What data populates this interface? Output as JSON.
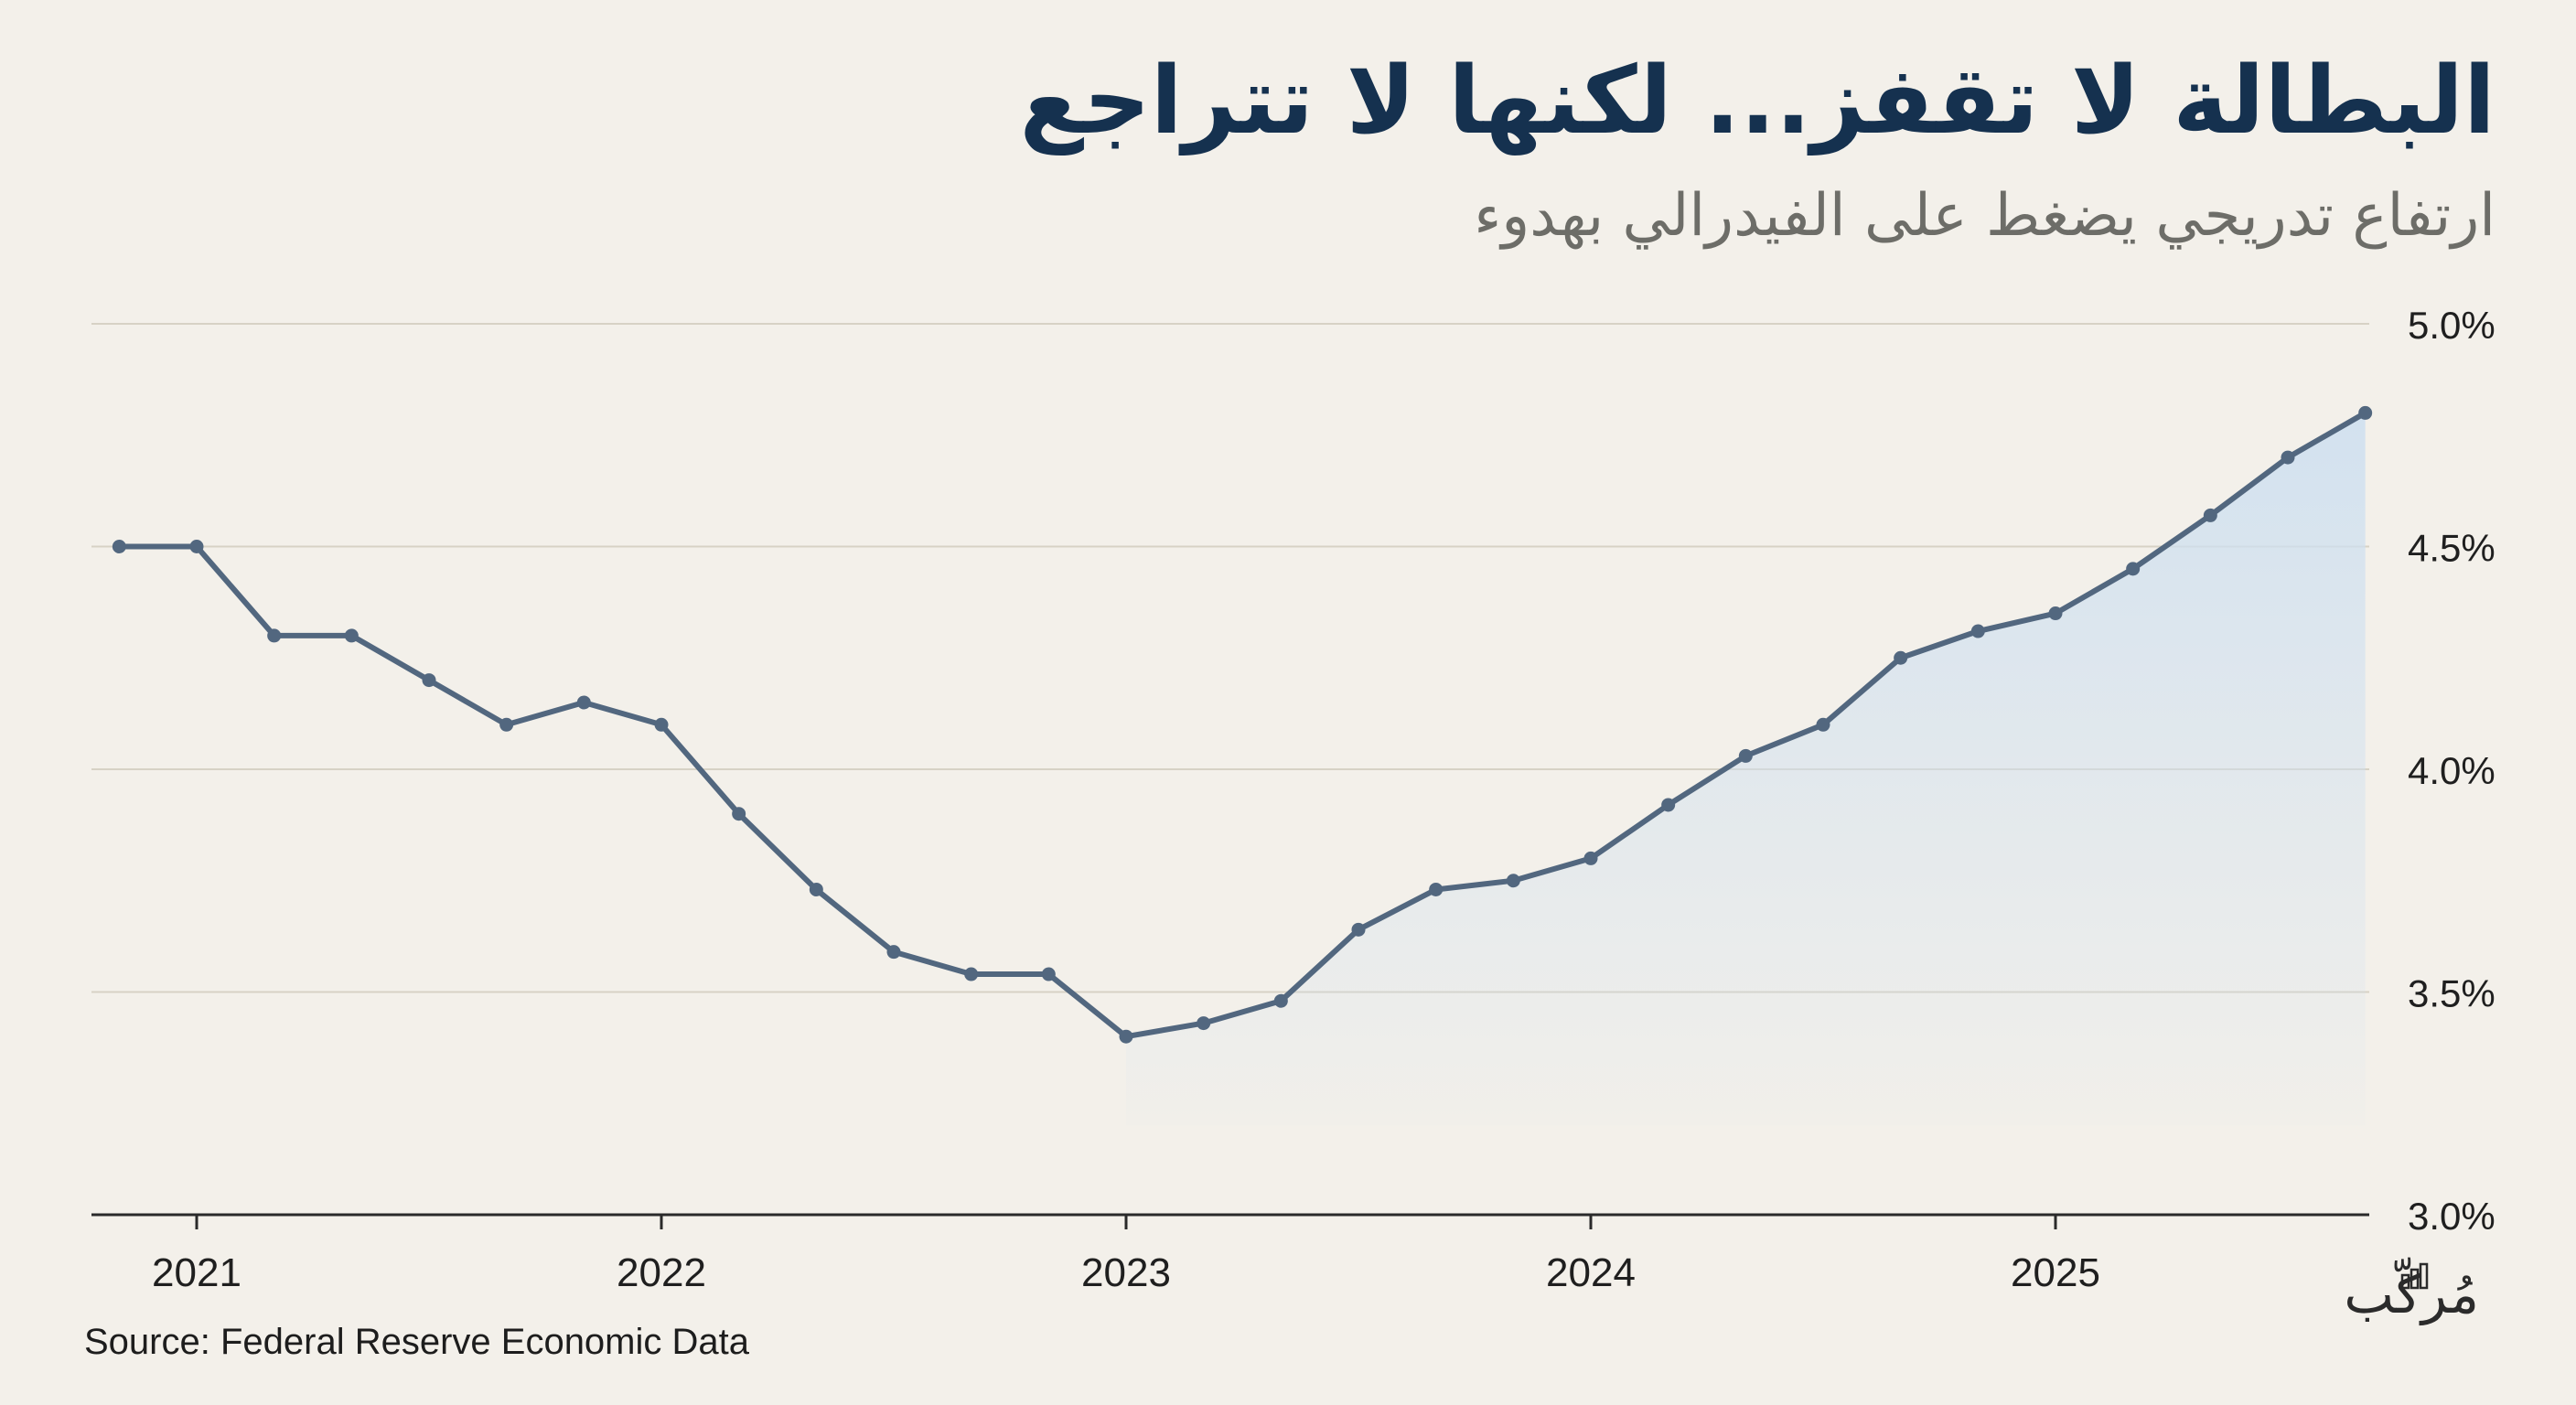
{
  "header": {
    "title": "البطالة لا تقفز... لكنها لا تتراجع",
    "subtitle": "ارتفاع تدريجي يضغط على الفيدرالي بهدوء"
  },
  "footer": {
    "source": "Source: Federal Reserve Economic Data",
    "logo_text": "مُركّب",
    "logo_icon": "bar-chart-icon"
  },
  "colors": {
    "background": "#f3f0ea",
    "line": "#52677f",
    "area_fill": "#cfe0f0",
    "grid": "#d7d2c5",
    "title": "#15314f",
    "subtitle": "#6d6d68"
  },
  "chart_data": {
    "type": "line",
    "title": "",
    "xlabel": "",
    "ylabel": "",
    "x_tick_labels": [
      "2021",
      "2022",
      "2023",
      "2024",
      "2025"
    ],
    "y_tick_labels": [
      "5.0%",
      "4.5%",
      "4.0%",
      "3.5%",
      "3.0%"
    ],
    "ylim": [
      3.0,
      5.0
    ],
    "grid": true,
    "legend": "none",
    "area_fill_from": "2023-01",
    "series": [
      {
        "name": "",
        "x": [
          "2020-11",
          "2021-01",
          "2021-03",
          "2021-05",
          "2021-07",
          "2021-09",
          "2021-11",
          "2022-01",
          "2022-03",
          "2022-05",
          "2022-07",
          "2022-09",
          "2022-11",
          "2023-01",
          "2023-03",
          "2023-05",
          "2023-07",
          "2023-09",
          "2023-11",
          "2024-01",
          "2024-03",
          "2024-05",
          "2024-07",
          "2024-09",
          "2024-11",
          "2025-01",
          "2025-03",
          "2025-05",
          "2025-07",
          "2025-09"
        ],
        "values": [
          4.5,
          4.5,
          4.3,
          4.3,
          4.2,
          4.1,
          4.15,
          4.1,
          3.9,
          3.73,
          3.59,
          3.54,
          3.54,
          3.4,
          3.43,
          3.48,
          3.64,
          3.73,
          3.75,
          3.8,
          3.92,
          4.03,
          4.1,
          4.25,
          4.31,
          4.35,
          4.45,
          4.57,
          4.7,
          4.8
        ]
      }
    ]
  }
}
